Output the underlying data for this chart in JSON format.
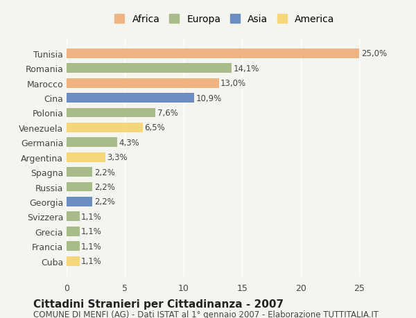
{
  "countries": [
    "Tunisia",
    "Romania",
    "Marocco",
    "Cina",
    "Polonia",
    "Venezuela",
    "Germania",
    "Argentina",
    "Spagna",
    "Russia",
    "Georgia",
    "Svizzera",
    "Grecia",
    "Francia",
    "Cuba"
  ],
  "values": [
    25.0,
    14.1,
    13.0,
    10.9,
    7.6,
    6.5,
    4.3,
    3.3,
    2.2,
    2.2,
    2.2,
    1.1,
    1.1,
    1.1,
    1.1
  ],
  "labels": [
    "25,0%",
    "14,1%",
    "13,0%",
    "10,9%",
    "7,6%",
    "6,5%",
    "4,3%",
    "3,3%",
    "2,2%",
    "2,2%",
    "2,2%",
    "1,1%",
    "1,1%",
    "1,1%",
    "1,1%"
  ],
  "continents": [
    "Africa",
    "Europa",
    "Africa",
    "Asia",
    "Europa",
    "America",
    "Europa",
    "America",
    "Europa",
    "Europa",
    "Asia",
    "Europa",
    "Europa",
    "Europa",
    "America"
  ],
  "continent_colors": {
    "Africa": "#F0B482",
    "Europa": "#A8BC8A",
    "Asia": "#6B8DBF",
    "America": "#F5D67A"
  },
  "legend_order": [
    "Africa",
    "Europa",
    "Asia",
    "America"
  ],
  "title": "Cittadini Stranieri per Cittadinanza - 2007",
  "subtitle": "COMUNE DI MENFI (AG) - Dati ISTAT al 1° gennaio 2007 - Elaborazione TUTTITALIA.IT",
  "xlim": [
    0,
    27
  ],
  "xticks": [
    0,
    5,
    10,
    15,
    20,
    25
  ],
  "background_color": "#f5f5f0",
  "bar_height": 0.65,
  "title_fontsize": 11,
  "subtitle_fontsize": 8.5,
  "label_fontsize": 8.5,
  "tick_fontsize": 9,
  "legend_fontsize": 10
}
